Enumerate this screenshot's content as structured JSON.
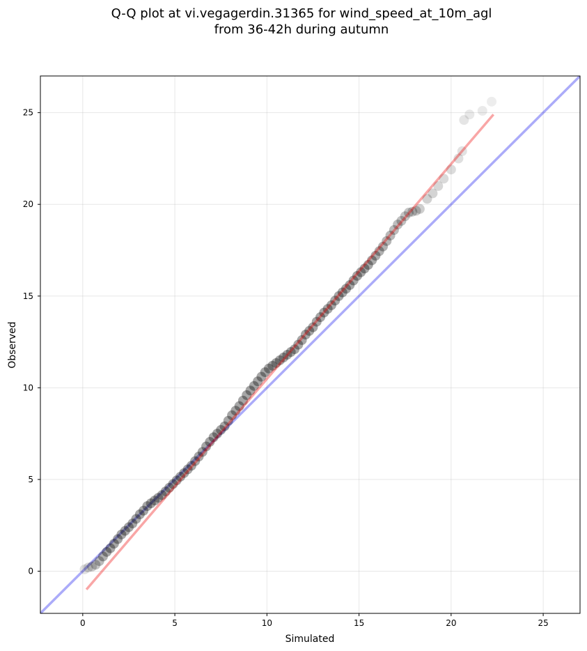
{
  "chart_data": {
    "type": "scatter",
    "title_line1": "Q-Q plot at vi.vegagerdin.31365 for wind_speed_at_10m_agl",
    "title_line2": "from 36-42h during autumn",
    "xlabel": "Simulated",
    "ylabel": "Observed",
    "xlim": [
      -2.3,
      27.0
    ],
    "ylim": [
      -2.3,
      27.0
    ],
    "xticks": [
      0,
      5,
      10,
      15,
      20,
      25
    ],
    "yticks": [
      0,
      5,
      10,
      15,
      20,
      25
    ],
    "grid": true,
    "colors": {
      "identity_line": "#0000ee",
      "fit_line": "#ee0000",
      "points": "#000000"
    },
    "identity_line": {
      "x": [
        -2.3,
        27.0
      ],
      "y": [
        -2.3,
        27.0
      ]
    },
    "fit_line": {
      "x": [
        0.2,
        22.3
      ],
      "y": [
        -1.0,
        24.9
      ]
    },
    "points": {
      "x": [
        0.1,
        0.3,
        0.5,
        0.7,
        0.9,
        1.1,
        1.3,
        1.5,
        1.7,
        1.9,
        2.1,
        2.3,
        2.5,
        2.7,
        2.9,
        3.1,
        3.3,
        3.5,
        3.7,
        3.9,
        4.1,
        4.3,
        4.5,
        4.7,
        4.9,
        5.1,
        5.3,
        5.5,
        5.7,
        5.9,
        6.1,
        6.3,
        6.5,
        6.7,
        6.9,
        7.1,
        7.3,
        7.5,
        7.7,
        7.9,
        8.1,
        8.3,
        8.5,
        8.7,
        8.9,
        9.1,
        9.3,
        9.5,
        9.7,
        9.9,
        10.1,
        10.3,
        10.5,
        10.7,
        10.9,
        11.1,
        11.3,
        11.5,
        11.7,
        11.9,
        12.1,
        12.3,
        12.5,
        12.7,
        12.9,
        13.1,
        13.3,
        13.5,
        13.7,
        13.9,
        14.1,
        14.3,
        14.5,
        14.7,
        14.9,
        15.1,
        15.3,
        15.5,
        15.7,
        15.9,
        16.1,
        16.3,
        16.5,
        16.7,
        16.9,
        17.1,
        17.3,
        17.5,
        17.7,
        17.9,
        18.1,
        18.3,
        18.7,
        19.0,
        19.3,
        19.6,
        20.0,
        20.4,
        20.6,
        20.7,
        21.0,
        21.7,
        22.2
      ],
      "y": [
        0.1,
        0.2,
        0.25,
        0.35,
        0.55,
        0.8,
        1.05,
        1.25,
        1.5,
        1.75,
        2.0,
        2.2,
        2.4,
        2.6,
        2.85,
        3.1,
        3.3,
        3.55,
        3.7,
        3.85,
        4.0,
        4.15,
        4.35,
        4.55,
        4.75,
        4.95,
        5.15,
        5.35,
        5.55,
        5.75,
        6.0,
        6.25,
        6.5,
        6.8,
        7.05,
        7.3,
        7.5,
        7.7,
        7.9,
        8.2,
        8.5,
        8.75,
        9.0,
        9.3,
        9.6,
        9.85,
        10.1,
        10.35,
        10.6,
        10.85,
        11.05,
        11.2,
        11.35,
        11.5,
        11.65,
        11.8,
        11.95,
        12.1,
        12.35,
        12.6,
        12.9,
        13.1,
        13.3,
        13.6,
        13.85,
        14.1,
        14.3,
        14.5,
        14.75,
        15.0,
        15.2,
        15.4,
        15.6,
        15.85,
        16.1,
        16.3,
        16.5,
        16.7,
        16.95,
        17.2,
        17.45,
        17.7,
        18.0,
        18.3,
        18.6,
        18.9,
        19.1,
        19.35,
        19.55,
        19.6,
        19.65,
        19.75,
        20.3,
        20.6,
        21.0,
        21.4,
        21.9,
        22.5,
        22.9,
        24.6,
        24.9,
        25.1,
        25.6
      ]
    }
  }
}
